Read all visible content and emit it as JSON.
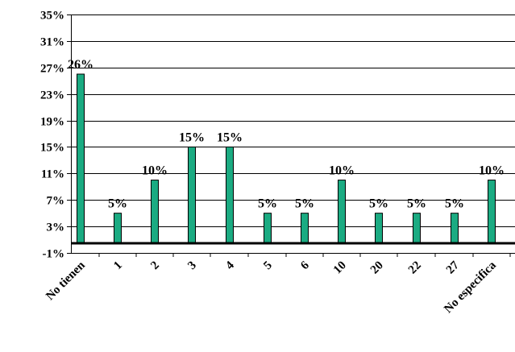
{
  "chart_data": {
    "type": "bar",
    "categories": [
      "No tienen",
      "1",
      "2",
      "3",
      "4",
      "5",
      "6",
      "10",
      "20",
      "22",
      "27",
      "No especifica"
    ],
    "values": [
      26,
      5,
      10,
      15,
      15,
      5,
      5,
      10,
      5,
      5,
      5,
      10
    ],
    "data_labels": [
      "26%",
      "5%",
      "10%",
      "15%",
      "15%",
      "5%",
      "5%",
      "10%",
      "5%",
      "5%",
      "5%",
      "10%"
    ],
    "y_ticks": [
      -1,
      3,
      7,
      11,
      15,
      19,
      23,
      27,
      31,
      35
    ],
    "y_tick_labels": [
      "-1%",
      "3%",
      "7%",
      "11%",
      "15%",
      "19%",
      "23%",
      "27%",
      "31%",
      "35%"
    ],
    "ylim": [
      -1,
      35
    ],
    "grid": true,
    "legend": "none",
    "colors": {
      "bar_fill": "#1bab82",
      "bar_stroke": "#000000",
      "grid": "#000000"
    }
  }
}
